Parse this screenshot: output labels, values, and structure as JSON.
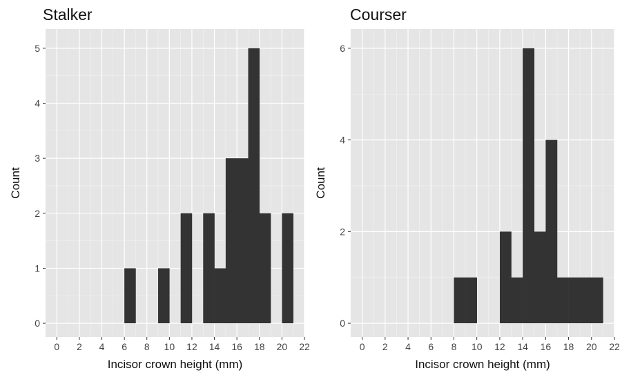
{
  "chart_data": [
    {
      "type": "bar",
      "title": "Stalker",
      "xlabel": "Incisor crown height (mm)",
      "ylabel": "Count",
      "xlim": [
        -1,
        22
      ],
      "ylim": [
        -0.25,
        5.35
      ],
      "x_ticks": [
        0,
        2,
        4,
        6,
        8,
        10,
        12,
        14,
        16,
        18,
        20,
        22
      ],
      "y_ticks": [
        0,
        1,
        2,
        3,
        4,
        5
      ],
      "grid": true,
      "bars": [
        {
          "x0": 6,
          "x1": 7,
          "value": 1
        },
        {
          "x0": 9,
          "x1": 10,
          "value": 1
        },
        {
          "x0": 11,
          "x1": 12,
          "value": 2
        },
        {
          "x0": 13,
          "x1": 14,
          "value": 2
        },
        {
          "x0": 14,
          "x1": 15,
          "value": 1
        },
        {
          "x0": 15,
          "x1": 16,
          "value": 3
        },
        {
          "x0": 16,
          "x1": 17,
          "value": 3
        },
        {
          "x0": 17,
          "x1": 18,
          "value": 5
        },
        {
          "x0": 18,
          "x1": 19,
          "value": 2
        },
        {
          "x0": 20,
          "x1": 21,
          "value": 2
        }
      ],
      "bar_color": "#333333"
    },
    {
      "type": "bar",
      "title": "Courser",
      "xlabel": "Incisor crown height (mm)",
      "ylabel": "Count",
      "xlim": [
        -1,
        22
      ],
      "ylim": [
        -0.3,
        6.42
      ],
      "x_ticks": [
        0,
        2,
        4,
        6,
        8,
        10,
        12,
        14,
        16,
        18,
        20,
        22
      ],
      "y_ticks": [
        0,
        2,
        4,
        6
      ],
      "grid": true,
      "bars": [
        {
          "x0": 8,
          "x1": 9,
          "value": 1
        },
        {
          "x0": 9,
          "x1": 10,
          "value": 1
        },
        {
          "x0": 12,
          "x1": 13,
          "value": 2
        },
        {
          "x0": 13,
          "x1": 14,
          "value": 1
        },
        {
          "x0": 14,
          "x1": 15,
          "value": 6
        },
        {
          "x0": 15,
          "x1": 16,
          "value": 2
        },
        {
          "x0": 16,
          "x1": 17,
          "value": 4
        },
        {
          "x0": 17,
          "x1": 18,
          "value": 1
        },
        {
          "x0": 18,
          "x1": 19,
          "value": 1
        },
        {
          "x0": 19,
          "x1": 20,
          "value": 1
        },
        {
          "x0": 20,
          "x1": 21,
          "value": 1
        }
      ],
      "bar_color": "#333333"
    }
  ],
  "colors": {
    "panel_background": "#e5e5e5",
    "grid_major": "#ffffff",
    "grid_minor": "#f2f2f2",
    "bar": "#333333",
    "tick": "#333333"
  }
}
